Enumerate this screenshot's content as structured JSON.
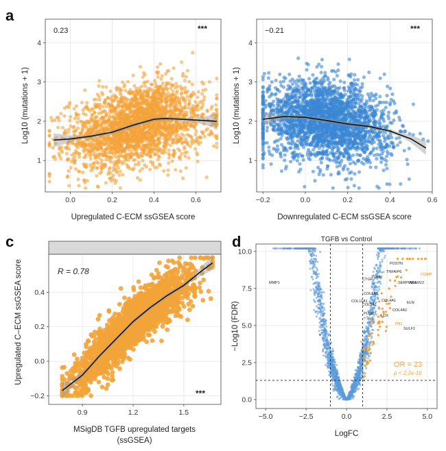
{
  "panels": {
    "a": {
      "letter": "a",
      "left": {
        "stat": "0.23",
        "sig": "***",
        "xlabel": "Upregulated C-ECM ssGSEA score",
        "ylabel": "Log10 (mutations + 1)"
      },
      "right": {
        "stat": "−0.21",
        "sig": "***",
        "xlabel": "Downregulated C-ECM ssGSEA score",
        "ylabel": "Log10 (mutations + 1)"
      }
    },
    "c": {
      "letter": "c",
      "stat": "R = 0.78",
      "sig": "***",
      "xlabel_line1": "MSigDB TGFB upregulated targets",
      "xlabel_line2": "(ssGSEA)",
      "ylabel": "Upregulated C–ECM ssGSEA score"
    },
    "d": {
      "letter": "d",
      "title": "TGFB vs Control",
      "or_text": "OR = 23",
      "p_text": "p < 2.2e-16",
      "xlabel": "LogFC",
      "ylabel": "−Log10 (FDR)",
      "gene_labels": [
        "MMP1",
        "POSTN",
        "COMP",
        "TNFAIP6",
        "CTGF",
        "TGFBI",
        "ADAM12",
        "SERPINE1",
        "COL1A1",
        "COL5A1",
        "COL4A1",
        "COL4A2",
        "LOX",
        "FN1",
        "SULF1",
        "COL11A1",
        "PLOD2",
        "ELN"
      ]
    }
  },
  "chart_data": [
    {
      "type": "scatter",
      "panel": "a-left",
      "xlabel": "Upregulated C-ECM ssGSEA score",
      "ylabel": "Log10 (mutations + 1)",
      "xlim": [
        -0.12,
        0.72
      ],
      "ylim": [
        0.2,
        4.6
      ],
      "xticks": [
        0.0,
        0.2,
        0.4,
        0.6
      ],
      "yticks": [
        1,
        2,
        3,
        4
      ],
      "grid": true,
      "point_color": "#f3a43a",
      "annotation": "0.23",
      "trend": {
        "x": [
          -0.08,
          0.0,
          0.1,
          0.2,
          0.3,
          0.4,
          0.45,
          0.5,
          0.6,
          0.7
        ],
        "y": [
          1.52,
          1.55,
          1.62,
          1.72,
          1.9,
          2.05,
          2.07,
          2.06,
          2.03,
          2.0
        ]
      }
    },
    {
      "type": "scatter",
      "panel": "a-right",
      "xlabel": "Downregulated C-ECM ssGSEA score",
      "ylabel": "Log10 (mutations + 1)",
      "xlim": [
        -0.23,
        0.6
      ],
      "ylim": [
        0.2,
        4.6
      ],
      "xticks": [
        -0.2,
        0.0,
        0.2,
        0.4,
        0.6
      ],
      "yticks": [
        1,
        2,
        3,
        4
      ],
      "grid": true,
      "point_color": "#3a87d4",
      "annotation": "−0.21",
      "trend": {
        "x": [
          -0.2,
          -0.1,
          0.0,
          0.1,
          0.2,
          0.3,
          0.4,
          0.5,
          0.57
        ],
        "y": [
          2.05,
          2.12,
          2.1,
          2.02,
          1.93,
          1.87,
          1.75,
          1.55,
          1.32
        ]
      }
    },
    {
      "type": "scatter",
      "panel": "c",
      "xlabel": "MSigDB TGFB upregulated targets (ssGSEA)",
      "ylabel": "Upregulated C–ECM ssGSEA score",
      "xlim": [
        0.7,
        1.72
      ],
      "ylim": [
        -0.25,
        0.62
      ],
      "xticks": [
        0.9,
        1.2,
        1.5
      ],
      "yticks": [
        -0.2,
        0.0,
        0.2,
        0.4
      ],
      "grid": true,
      "point_color": "#f3a43a",
      "annotation": "R = 0.78",
      "trend": {
        "x": [
          0.78,
          0.9,
          1.0,
          1.1,
          1.2,
          1.3,
          1.4,
          1.5,
          1.6,
          1.67
        ],
        "y": [
          -0.17,
          -0.08,
          0.03,
          0.13,
          0.23,
          0.31,
          0.38,
          0.44,
          0.52,
          0.57
        ]
      }
    },
    {
      "type": "scatter",
      "panel": "d",
      "title": "TGFB vs Control",
      "xlabel": "LogFC",
      "ylabel": "−Log10 (FDR)",
      "xlim": [
        -5.6,
        5.6
      ],
      "ylim": [
        -0.6,
        10.5
      ],
      "xticks": [
        -5.0,
        -2.5,
        0.0,
        2.5,
        5.0
      ],
      "yticks": [
        0.0,
        2.5,
        5.0,
        7.5,
        10.0
      ],
      "grid": true,
      "point_color": "#5b9bd8",
      "highlight_color": "#f3a43a",
      "thresholds": {
        "logfc": [
          -1,
          1
        ],
        "fdr": 1.3
      },
      "annotations": [
        "OR = 23",
        "p < 2.2e-16"
      ]
    }
  ]
}
